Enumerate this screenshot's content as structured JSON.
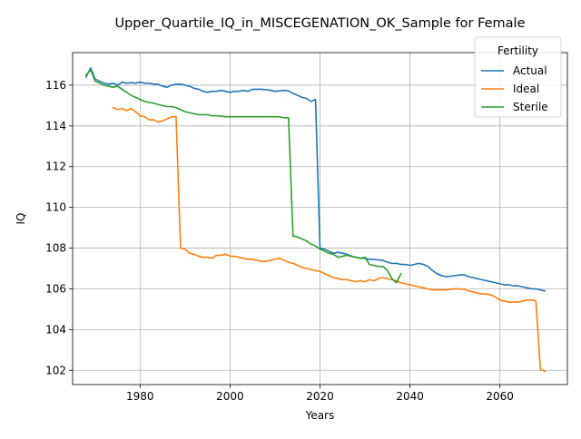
{
  "chart_data": {
    "type": "line",
    "title": "Upper_Quartile_IQ_in_MISCEGENATION_OK_Sample for Female",
    "xlabel": "Years",
    "ylabel": "IQ",
    "xlim": [
      1965,
      2075
    ],
    "ylim": [
      101.3,
      117.6
    ],
    "xticks": [
      1980,
      2000,
      2020,
      2040,
      2060
    ],
    "xtick_labels": [
      "1980",
      "2000",
      "2020",
      "2040",
      "2060"
    ],
    "yticks": [
      102,
      104,
      106,
      108,
      110,
      112,
      114,
      116
    ],
    "ytick_labels": [
      "102",
      "104",
      "106",
      "108",
      "110",
      "112",
      "114",
      "116"
    ],
    "grid": true,
    "legend": {
      "title": "Fertility",
      "placement": "top-right"
    },
    "series": [
      {
        "name": "Actual",
        "color": "#1f77b4",
        "points": [
          [
            1968,
            116.4
          ],
          [
            1969,
            116.85
          ],
          [
            1970,
            116.3
          ],
          [
            1971,
            116.2
          ],
          [
            1972,
            116.1
          ],
          [
            1973,
            116.05
          ],
          [
            1974,
            116.1
          ],
          [
            1975,
            116.0
          ],
          [
            1976,
            116.15
          ],
          [
            1977,
            116.1
          ],
          [
            1978,
            116.12
          ],
          [
            1979,
            116.1
          ],
          [
            1980,
            116.15
          ],
          [
            1981,
            116.1
          ],
          [
            1982,
            116.1
          ],
          [
            1983,
            116.05
          ],
          [
            1984,
            116.05
          ],
          [
            1985,
            115.95
          ],
          [
            1986,
            115.9
          ],
          [
            1987,
            116.0
          ],
          [
            1988,
            116.05
          ],
          [
            1989,
            116.05
          ],
          [
            1990,
            116.0
          ],
          [
            1991,
            115.95
          ],
          [
            1992,
            115.85
          ],
          [
            1993,
            115.8
          ],
          [
            1994,
            115.7
          ],
          [
            1995,
            115.65
          ],
          [
            1996,
            115.7
          ],
          [
            1997,
            115.7
          ],
          [
            1998,
            115.75
          ],
          [
            1999,
            115.7
          ],
          [
            2000,
            115.65
          ],
          [
            2001,
            115.7
          ],
          [
            2002,
            115.7
          ],
          [
            2003,
            115.75
          ],
          [
            2004,
            115.7
          ],
          [
            2005,
            115.8
          ],
          [
            2006,
            115.8
          ],
          [
            2007,
            115.8
          ],
          [
            2008,
            115.78
          ],
          [
            2009,
            115.75
          ],
          [
            2010,
            115.7
          ],
          [
            2011,
            115.72
          ],
          [
            2012,
            115.75
          ],
          [
            2013,
            115.72
          ],
          [
            2014,
            115.6
          ],
          [
            2015,
            115.5
          ],
          [
            2016,
            115.4
          ],
          [
            2017,
            115.35
          ],
          [
            2018,
            115.2
          ],
          [
            2019,
            115.3
          ],
          [
            2020,
            108.0
          ],
          [
            2021,
            107.95
          ],
          [
            2022,
            107.85
          ],
          [
            2023,
            107.75
          ],
          [
            2024,
            107.8
          ],
          [
            2025,
            107.75
          ],
          [
            2026,
            107.7
          ],
          [
            2027,
            107.6
          ],
          [
            2028,
            107.55
          ],
          [
            2029,
            107.5
          ],
          [
            2030,
            107.5
          ],
          [
            2031,
            107.45
          ],
          [
            2032,
            107.45
          ],
          [
            2033,
            107.42
          ],
          [
            2034,
            107.4
          ],
          [
            2035,
            107.3
          ],
          [
            2036,
            107.25
          ],
          [
            2037,
            107.25
          ],
          [
            2038,
            107.2
          ],
          [
            2039,
            107.2
          ],
          [
            2040,
            107.15
          ],
          [
            2041,
            107.2
          ],
          [
            2042,
            107.25
          ],
          [
            2043,
            107.2
          ],
          [
            2044,
            107.1
          ],
          [
            2045,
            106.9
          ],
          [
            2046,
            106.75
          ],
          [
            2047,
            106.65
          ],
          [
            2048,
            106.6
          ],
          [
            2049,
            106.62
          ],
          [
            2050,
            106.65
          ],
          [
            2051,
            106.68
          ],
          [
            2052,
            106.7
          ],
          [
            2053,
            106.6
          ],
          [
            2054,
            106.55
          ],
          [
            2055,
            106.5
          ],
          [
            2056,
            106.45
          ],
          [
            2057,
            106.4
          ],
          [
            2058,
            106.35
          ],
          [
            2059,
            106.3
          ],
          [
            2060,
            106.25
          ],
          [
            2061,
            106.2
          ],
          [
            2062,
            106.2
          ],
          [
            2063,
            106.15
          ],
          [
            2064,
            106.15
          ],
          [
            2065,
            106.1
          ],
          [
            2066,
            106.05
          ],
          [
            2067,
            106.0
          ],
          [
            2068,
            106.0
          ],
          [
            2069,
            105.95
          ],
          [
            2070,
            105.9
          ]
        ]
      },
      {
        "name": "Ideal",
        "color": "#ff7f0e",
        "points": [
          [
            1974,
            114.9
          ],
          [
            1975,
            114.8
          ],
          [
            1976,
            114.85
          ],
          [
            1977,
            114.75
          ],
          [
            1978,
            114.85
          ],
          [
            1979,
            114.7
          ],
          [
            1980,
            114.5
          ],
          [
            1981,
            114.45
          ],
          [
            1982,
            114.3
          ],
          [
            1983,
            114.3
          ],
          [
            1984,
            114.2
          ],
          [
            1985,
            114.25
          ],
          [
            1986,
            114.35
          ],
          [
            1987,
            114.45
          ],
          [
            1988,
            114.45
          ],
          [
            1989,
            108.0
          ],
          [
            1990,
            107.95
          ],
          [
            1991,
            107.75
          ],
          [
            1992,
            107.7
          ],
          [
            1993,
            107.6
          ],
          [
            1994,
            107.55
          ],
          [
            1995,
            107.55
          ],
          [
            1996,
            107.5
          ],
          [
            1997,
            107.65
          ],
          [
            1998,
            107.65
          ],
          [
            1999,
            107.7
          ],
          [
            2000,
            107.6
          ],
          [
            2001,
            107.6
          ],
          [
            2002,
            107.55
          ],
          [
            2003,
            107.5
          ],
          [
            2004,
            107.45
          ],
          [
            2005,
            107.45
          ],
          [
            2006,
            107.4
          ],
          [
            2007,
            107.35
          ],
          [
            2008,
            107.35
          ],
          [
            2009,
            107.4
          ],
          [
            2010,
            107.45
          ],
          [
            2011,
            107.5
          ],
          [
            2012,
            107.4
          ],
          [
            2013,
            107.3
          ],
          [
            2014,
            107.25
          ],
          [
            2015,
            107.15
          ],
          [
            2016,
            107.05
          ],
          [
            2017,
            107.0
          ],
          [
            2018,
            106.95
          ],
          [
            2019,
            106.9
          ],
          [
            2020,
            106.85
          ],
          [
            2021,
            106.75
          ],
          [
            2022,
            106.65
          ],
          [
            2023,
            106.55
          ],
          [
            2024,
            106.5
          ],
          [
            2025,
            106.45
          ],
          [
            2026,
            106.45
          ],
          [
            2027,
            106.4
          ],
          [
            2028,
            106.35
          ],
          [
            2029,
            106.4
          ],
          [
            2030,
            106.35
          ],
          [
            2031,
            106.45
          ],
          [
            2032,
            106.4
          ],
          [
            2033,
            106.5
          ],
          [
            2034,
            106.55
          ],
          [
            2035,
            106.5
          ],
          [
            2036,
            106.45
          ],
          [
            2037,
            106.4
          ],
          [
            2038,
            106.3
          ],
          [
            2039,
            106.25
          ],
          [
            2040,
            106.2
          ],
          [
            2041,
            106.15
          ],
          [
            2042,
            106.1
          ],
          [
            2043,
            106.05
          ],
          [
            2044,
            106.0
          ],
          [
            2045,
            105.95
          ],
          [
            2046,
            105.95
          ],
          [
            2047,
            105.95
          ],
          [
            2048,
            105.95
          ],
          [
            2049,
            105.98
          ],
          [
            2050,
            106.0
          ],
          [
            2051,
            106.0
          ],
          [
            2052,
            105.98
          ],
          [
            2053,
            105.9
          ],
          [
            2054,
            105.85
          ],
          [
            2055,
            105.8
          ],
          [
            2056,
            105.75
          ],
          [
            2057,
            105.75
          ],
          [
            2058,
            105.7
          ],
          [
            2059,
            105.6
          ],
          [
            2060,
            105.45
          ],
          [
            2061,
            105.4
          ],
          [
            2062,
            105.35
          ],
          [
            2063,
            105.35
          ],
          [
            2064,
            105.35
          ],
          [
            2065,
            105.4
          ],
          [
            2066,
            105.45
          ],
          [
            2067,
            105.45
          ],
          [
            2068,
            105.4
          ],
          [
            2069,
            102.05
          ],
          [
            2070,
            101.95
          ]
        ]
      },
      {
        "name": "Sterile",
        "color": "#2ca02c",
        "points": [
          [
            1968,
            116.5
          ],
          [
            1969,
            116.75
          ],
          [
            1970,
            116.2
          ],
          [
            1971,
            116.1
          ],
          [
            1972,
            116.0
          ],
          [
            1973,
            115.95
          ],
          [
            1974,
            115.9
          ],
          [
            1975,
            115.95
          ],
          [
            1976,
            115.8
          ],
          [
            1977,
            115.65
          ],
          [
            1978,
            115.5
          ],
          [
            1979,
            115.4
          ],
          [
            1980,
            115.3
          ],
          [
            1981,
            115.2
          ],
          [
            1982,
            115.15
          ],
          [
            1983,
            115.12
          ],
          [
            1984,
            115.05
          ],
          [
            1985,
            115.0
          ],
          [
            1986,
            114.95
          ],
          [
            1987,
            114.95
          ],
          [
            1988,
            114.9
          ],
          [
            1989,
            114.8
          ],
          [
            1990,
            114.7
          ],
          [
            1991,
            114.65
          ],
          [
            1992,
            114.6
          ],
          [
            1993,
            114.55
          ],
          [
            1994,
            114.55
          ],
          [
            1995,
            114.55
          ],
          [
            1996,
            114.5
          ],
          [
            1997,
            114.5
          ],
          [
            1998,
            114.48
          ],
          [
            1999,
            114.45
          ],
          [
            2000,
            114.45
          ],
          [
            2001,
            114.45
          ],
          [
            2002,
            114.45
          ],
          [
            2003,
            114.45
          ],
          [
            2004,
            114.45
          ],
          [
            2005,
            114.45
          ],
          [
            2006,
            114.45
          ],
          [
            2007,
            114.45
          ],
          [
            2008,
            114.45
          ],
          [
            2009,
            114.45
          ],
          [
            2010,
            114.45
          ],
          [
            2011,
            114.45
          ],
          [
            2012,
            114.4
          ],
          [
            2013,
            114.4
          ],
          [
            2014,
            108.6
          ],
          [
            2015,
            108.55
          ],
          [
            2016,
            108.45
          ],
          [
            2017,
            108.35
          ],
          [
            2018,
            108.2
          ],
          [
            2019,
            108.1
          ],
          [
            2020,
            107.95
          ],
          [
            2021,
            107.85
          ],
          [
            2022,
            107.75
          ],
          [
            2023,
            107.7
          ],
          [
            2024,
            107.55
          ],
          [
            2025,
            107.6
          ],
          [
            2026,
            107.65
          ],
          [
            2027,
            107.6
          ],
          [
            2028,
            107.55
          ],
          [
            2029,
            107.5
          ],
          [
            2030,
            107.55
          ],
          [
            2031,
            107.2
          ],
          [
            2032,
            107.15
          ],
          [
            2033,
            107.1
          ],
          [
            2034,
            107.1
          ],
          [
            2035,
            106.9
          ],
          [
            2036,
            106.5
          ],
          [
            2037,
            106.3
          ],
          [
            2038,
            106.75
          ]
        ]
      }
    ]
  }
}
